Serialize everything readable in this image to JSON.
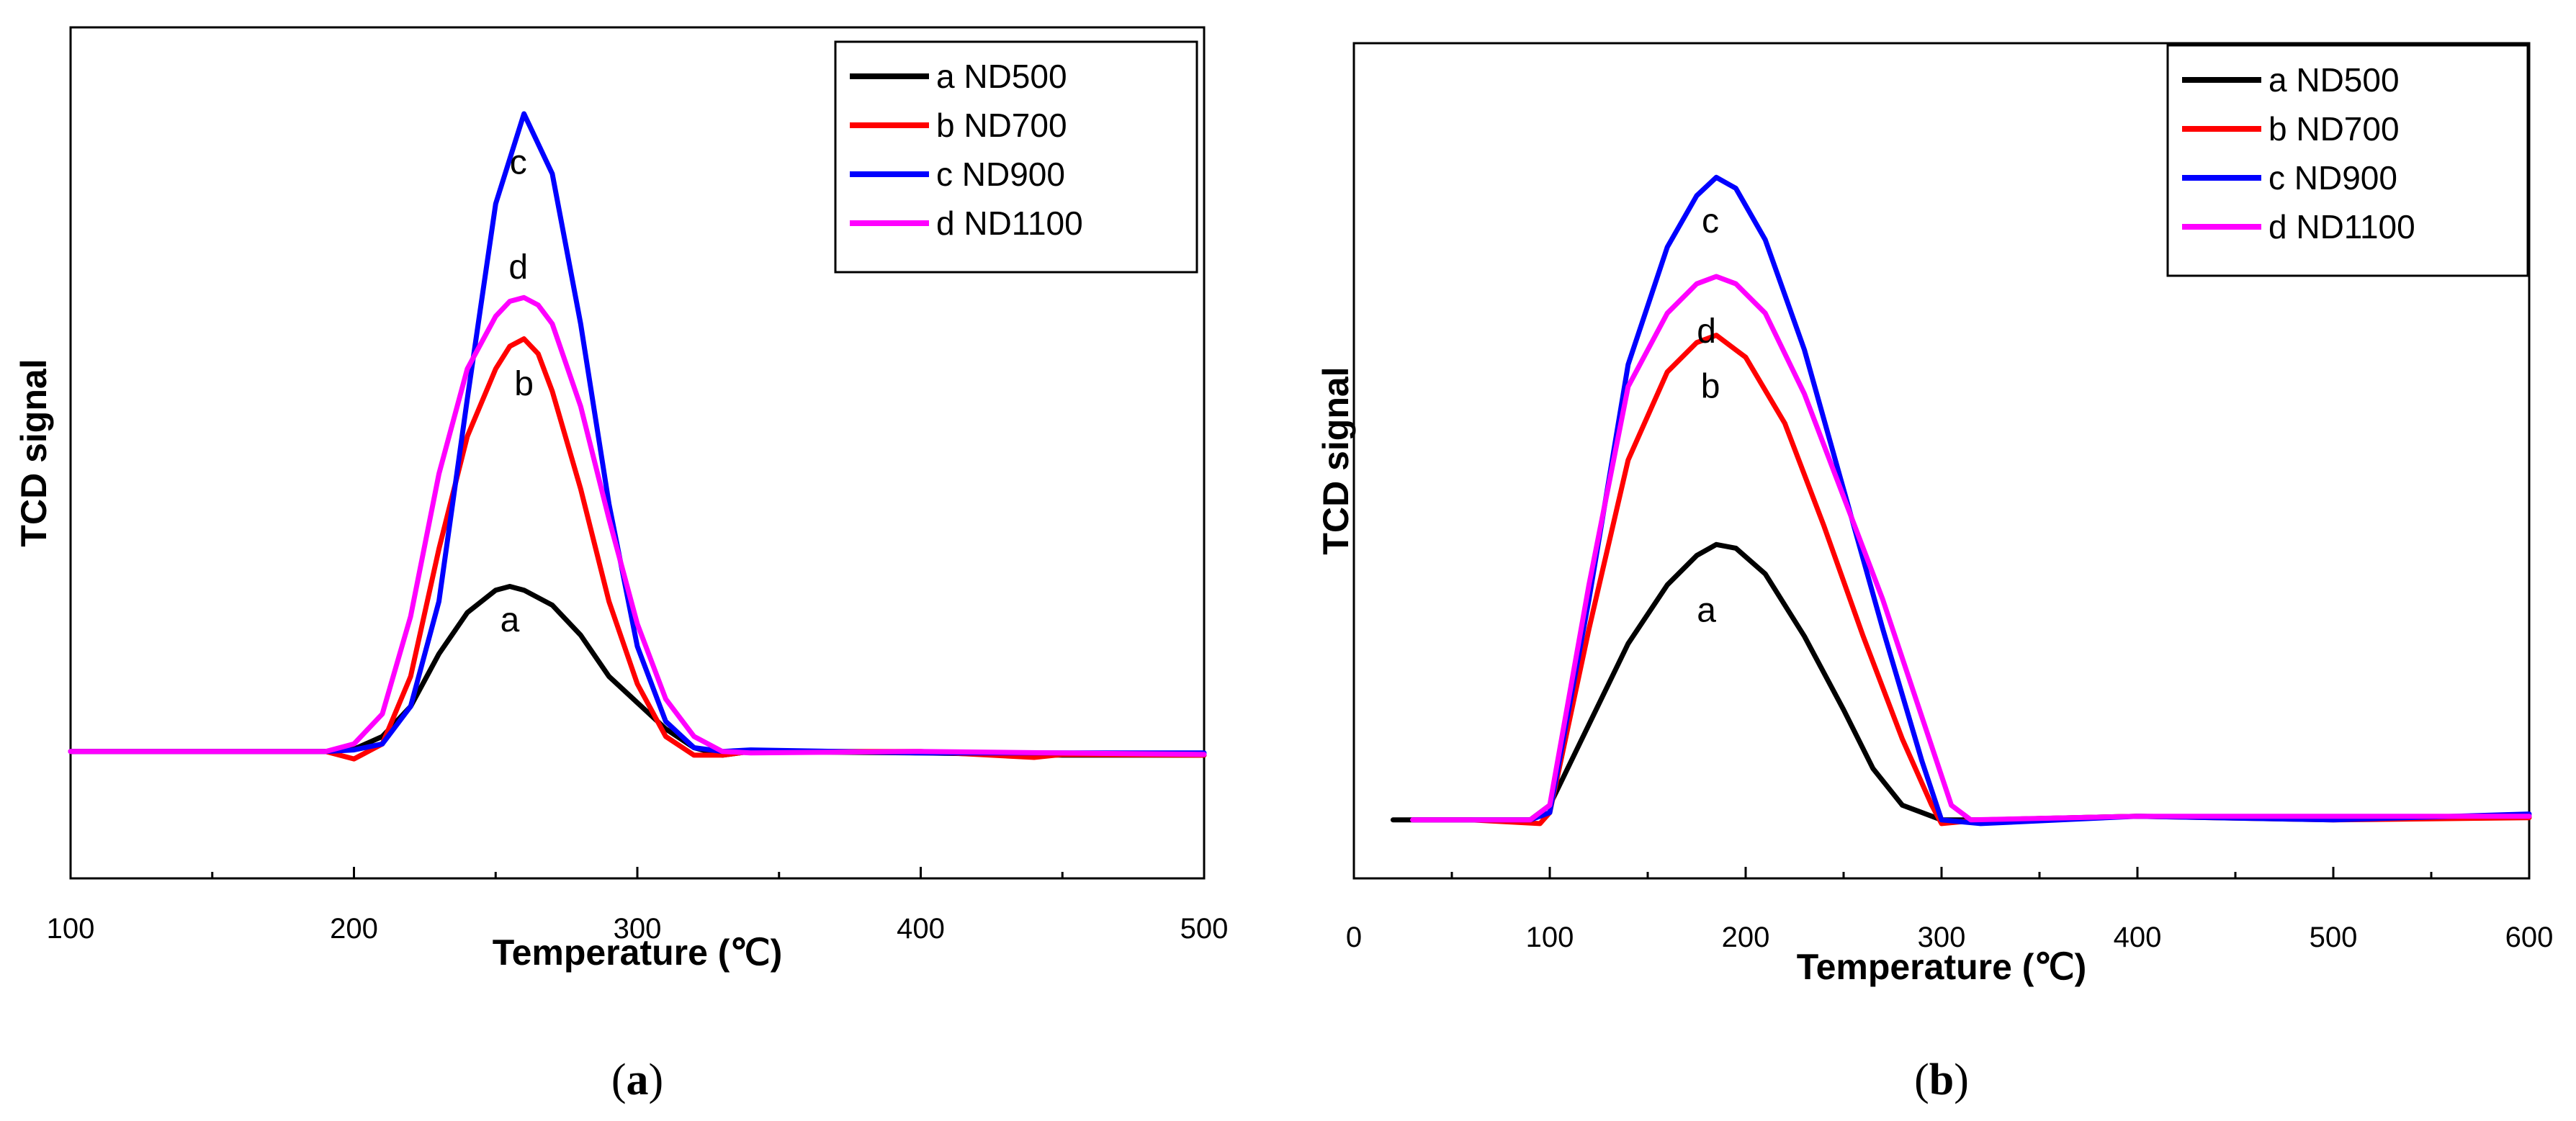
{
  "chart_data": [
    {
      "type": "line",
      "panel": "a",
      "title": "",
      "xlabel": "Temperature (℃)",
      "ylabel": "TCD signal",
      "xlim": [
        100,
        500
      ],
      "ylim": [
        0,
        100
      ],
      "xticks": [
        100,
        200,
        300,
        400,
        500
      ],
      "caption": {
        "open": "(",
        "letter": "a",
        "close": ")"
      },
      "series": [
        {
          "name": "ND500",
          "letter": "a",
          "color": "#000000",
          "points": [
            [
              100,
              15
            ],
            [
              150,
              15
            ],
            [
              190,
              15
            ],
            [
              200,
              15.3
            ],
            [
              210,
              17
            ],
            [
              220,
              21
            ],
            [
              230,
              28
            ],
            [
              240,
              33.5
            ],
            [
              250,
              36.5
            ],
            [
              255,
              37
            ],
            [
              260,
              36.5
            ],
            [
              270,
              34.5
            ],
            [
              280,
              30.5
            ],
            [
              290,
              25
            ],
            [
              300,
              21.5
            ],
            [
              310,
              18
            ],
            [
              320,
              15.5
            ],
            [
              330,
              14.5
            ],
            [
              340,
              15
            ],
            [
              400,
              14.8
            ],
            [
              450,
              14.5
            ],
            [
              500,
              14.5
            ]
          ],
          "label_pos": [
            255,
            31
          ]
        },
        {
          "name": "ND700",
          "letter": "b",
          "color": "#ff0000",
          "points": [
            [
              100,
              15
            ],
            [
              150,
              15
            ],
            [
              190,
              15
            ],
            [
              200,
              14
            ],
            [
              210,
              16
            ],
            [
              220,
              25
            ],
            [
              230,
              42
            ],
            [
              240,
              57
            ],
            [
              250,
              66
            ],
            [
              255,
              69
            ],
            [
              260,
              70
            ],
            [
              265,
              68
            ],
            [
              270,
              63
            ],
            [
              280,
              50
            ],
            [
              290,
              35
            ],
            [
              300,
              24
            ],
            [
              310,
              17
            ],
            [
              320,
              14.5
            ],
            [
              330,
              14.5
            ],
            [
              340,
              15
            ],
            [
              400,
              15
            ],
            [
              440,
              14.2
            ],
            [
              450,
              14.6
            ],
            [
              500,
              14.5
            ]
          ],
          "label_pos": [
            260,
            62.5
          ]
        },
        {
          "name": "ND900",
          "letter": "c",
          "color": "#0000ff",
          "points": [
            [
              100,
              15
            ],
            [
              150,
              15
            ],
            [
              190,
              15
            ],
            [
              200,
              15.2
            ],
            [
              210,
              16
            ],
            [
              220,
              21
            ],
            [
              230,
              35
            ],
            [
              240,
              62
            ],
            [
              250,
              88
            ],
            [
              260,
              100
            ],
            [
              270,
              92
            ],
            [
              280,
              72
            ],
            [
              290,
              48
            ],
            [
              300,
              29
            ],
            [
              310,
              19
            ],
            [
              320,
              15.5
            ],
            [
              330,
              15
            ],
            [
              340,
              15.2
            ],
            [
              400,
              14.8
            ],
            [
              500,
              14.8
            ]
          ],
          "label_pos": [
            258,
            92
          ]
        },
        {
          "name": "ND1100",
          "letter": "d",
          "color": "#ff00ff",
          "points": [
            [
              100,
              15
            ],
            [
              150,
              15
            ],
            [
              190,
              15
            ],
            [
              200,
              16
            ],
            [
              210,
              20
            ],
            [
              220,
              33
            ],
            [
              230,
              52
            ],
            [
              240,
              66
            ],
            [
              250,
              73
            ],
            [
              255,
              75
            ],
            [
              260,
              75.5
            ],
            [
              265,
              74.5
            ],
            [
              270,
              72
            ],
            [
              280,
              61
            ],
            [
              290,
              46
            ],
            [
              300,
              32
            ],
            [
              310,
              22
            ],
            [
              320,
              17
            ],
            [
              330,
              15
            ],
            [
              340,
              14.8
            ],
            [
              400,
              15
            ],
            [
              500,
              14.6
            ]
          ],
          "label_pos": [
            258,
            78
          ]
        }
      ]
    },
    {
      "type": "line",
      "panel": "b",
      "title": "",
      "xlabel": "Temperature (℃)",
      "ylabel": "TCD signal",
      "xlim": [
        0,
        600
      ],
      "ylim": [
        0,
        100
      ],
      "xticks": [
        0,
        100,
        200,
        300,
        400,
        500,
        600
      ],
      "caption": {
        "open": "(",
        "letter": "b",
        "close": ")"
      },
      "series": [
        {
          "name": "ND500",
          "letter": "a",
          "color": "#000000",
          "points": [
            [
              20,
              6
            ],
            [
              60,
              6
            ],
            [
              90,
              6
            ],
            [
              100,
              8
            ],
            [
              120,
              19
            ],
            [
              140,
              30
            ],
            [
              160,
              38
            ],
            [
              175,
              42
            ],
            [
              185,
              43.5
            ],
            [
              195,
              43
            ],
            [
              210,
              39.5
            ],
            [
              230,
              31
            ],
            [
              250,
              21
            ],
            [
              265,
              13
            ],
            [
              280,
              8
            ],
            [
              300,
              6
            ],
            [
              320,
              6
            ],
            [
              400,
              6.5
            ],
            [
              500,
              6.2
            ],
            [
              600,
              6.5
            ]
          ],
          "label_pos": [
            180,
            33
          ]
        },
        {
          "name": "ND700",
          "letter": "b",
          "color": "#ff0000",
          "points": [
            [
              30,
              6
            ],
            [
              60,
              6
            ],
            [
              95,
              5.5
            ],
            [
              100,
              7
            ],
            [
              120,
              32
            ],
            [
              140,
              55
            ],
            [
              160,
              67
            ],
            [
              175,
              71
            ],
            [
              185,
              72
            ],
            [
              200,
              69
            ],
            [
              220,
              60
            ],
            [
              240,
              46
            ],
            [
              260,
              31
            ],
            [
              280,
              17
            ],
            [
              295,
              8
            ],
            [
              300,
              5.5
            ],
            [
              320,
              6
            ],
            [
              400,
              6.5
            ],
            [
              500,
              6
            ],
            [
              600,
              6.3
            ]
          ],
          "label_pos": [
            182,
            63.5
          ]
        },
        {
          "name": "ND900",
          "letter": "c",
          "color": "#0000ff",
          "points": [
            [
              30,
              6
            ],
            [
              60,
              6
            ],
            [
              90,
              6
            ],
            [
              100,
              7
            ],
            [
              120,
              36
            ],
            [
              140,
              68
            ],
            [
              160,
              84
            ],
            [
              175,
              91
            ],
            [
              185,
              93.5
            ],
            [
              195,
              92
            ],
            [
              210,
              85
            ],
            [
              230,
              70
            ],
            [
              250,
              51
            ],
            [
              270,
              32
            ],
            [
              290,
              14
            ],
            [
              300,
              6
            ],
            [
              320,
              5.5
            ],
            [
              400,
              6.5
            ],
            [
              500,
              6
            ],
            [
              600,
              6.8
            ]
          ],
          "label_pos": [
            182,
            86
          ]
        },
        {
          "name": "ND1100",
          "letter": "d",
          "color": "#ff00ff",
          "points": [
            [
              30,
              6
            ],
            [
              60,
              6
            ],
            [
              90,
              6
            ],
            [
              100,
              8
            ],
            [
              120,
              38
            ],
            [
              140,
              65
            ],
            [
              160,
              75
            ],
            [
              175,
              79
            ],
            [
              185,
              80
            ],
            [
              195,
              79
            ],
            [
              210,
              75
            ],
            [
              230,
              64
            ],
            [
              250,
              50
            ],
            [
              270,
              36
            ],
            [
              290,
              20
            ],
            [
              305,
              8
            ],
            [
              315,
              6
            ],
            [
              400,
              6.5
            ],
            [
              500,
              6.5
            ],
            [
              600,
              6.5
            ]
          ],
          "label_pos": [
            180,
            71
          ]
        }
      ]
    }
  ]
}
